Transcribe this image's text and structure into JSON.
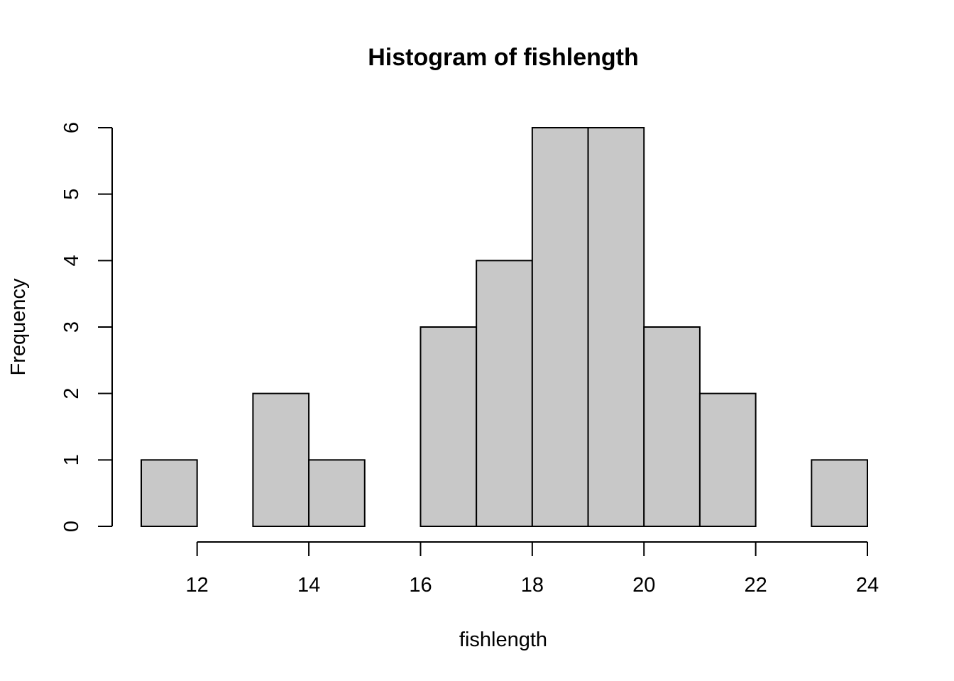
{
  "chart_data": {
    "type": "bar",
    "title": "Histogram of fishlength",
    "xlabel": "fishlength",
    "ylabel": "Frequency",
    "bin_edges": [
      11,
      12,
      13,
      14,
      15,
      16,
      17,
      18,
      19,
      20,
      21,
      22,
      23,
      24
    ],
    "values": [
      1,
      0,
      2,
      1,
      0,
      3,
      4,
      6,
      6,
      3,
      2,
      0,
      1
    ],
    "x_ticks": [
      12,
      14,
      16,
      18,
      20,
      22,
      24
    ],
    "y_ticks": [
      0,
      1,
      2,
      3,
      4,
      5,
      6
    ],
    "xlim": [
      11,
      24
    ],
    "ylim": [
      0,
      6
    ],
    "bar_color": "#c8c8c8",
    "grid": false,
    "legend": "none"
  }
}
